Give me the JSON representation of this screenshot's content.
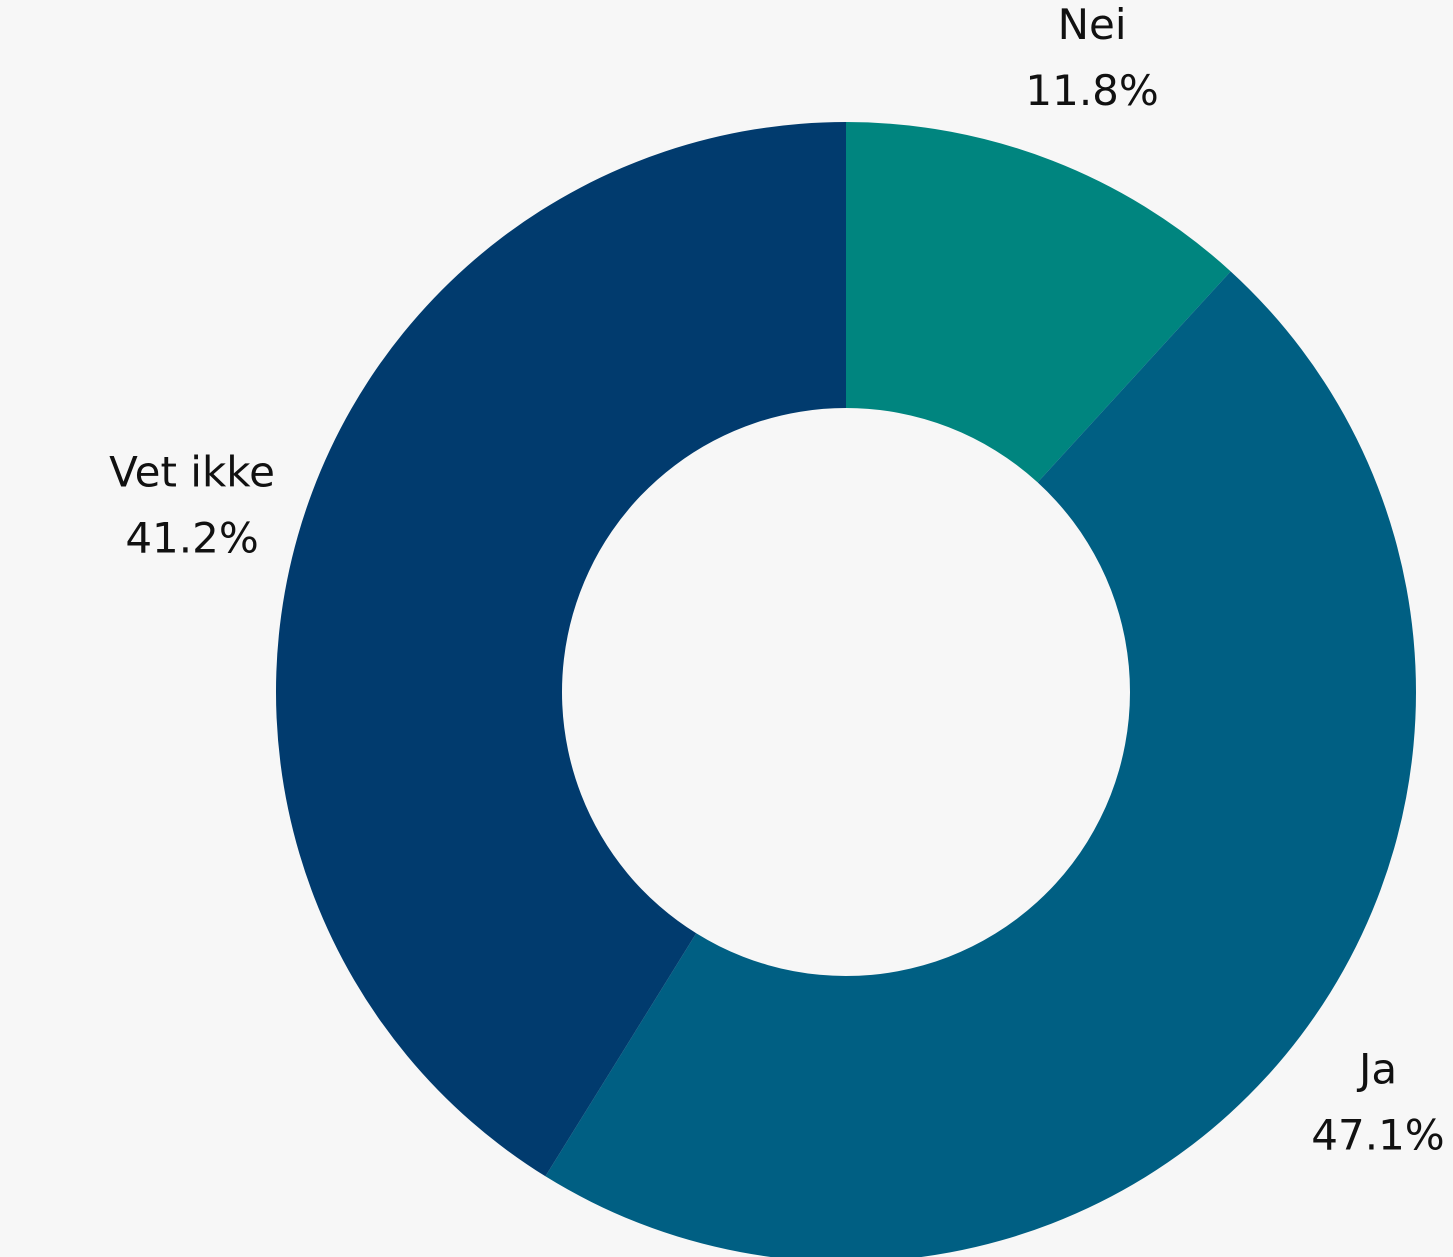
{
  "colors": {
    "background": "#f7f7f7"
  },
  "chart_data": {
    "type": "pie",
    "variant": "donut",
    "title": "",
    "slices": [
      {
        "label": "Nei",
        "value": 11.8,
        "value_label": "11.8%",
        "color": "#00857f"
      },
      {
        "label": "Ja",
        "value": 47.1,
        "value_label": "47.1%",
        "color": "#005f83"
      },
      {
        "label": "Vet ikke",
        "value": 41.2,
        "value_label": "41.2%",
        "color": "#013b6e"
      }
    ],
    "start_angle_deg": 0,
    "direction": "clockwise",
    "labels_outside": true
  }
}
